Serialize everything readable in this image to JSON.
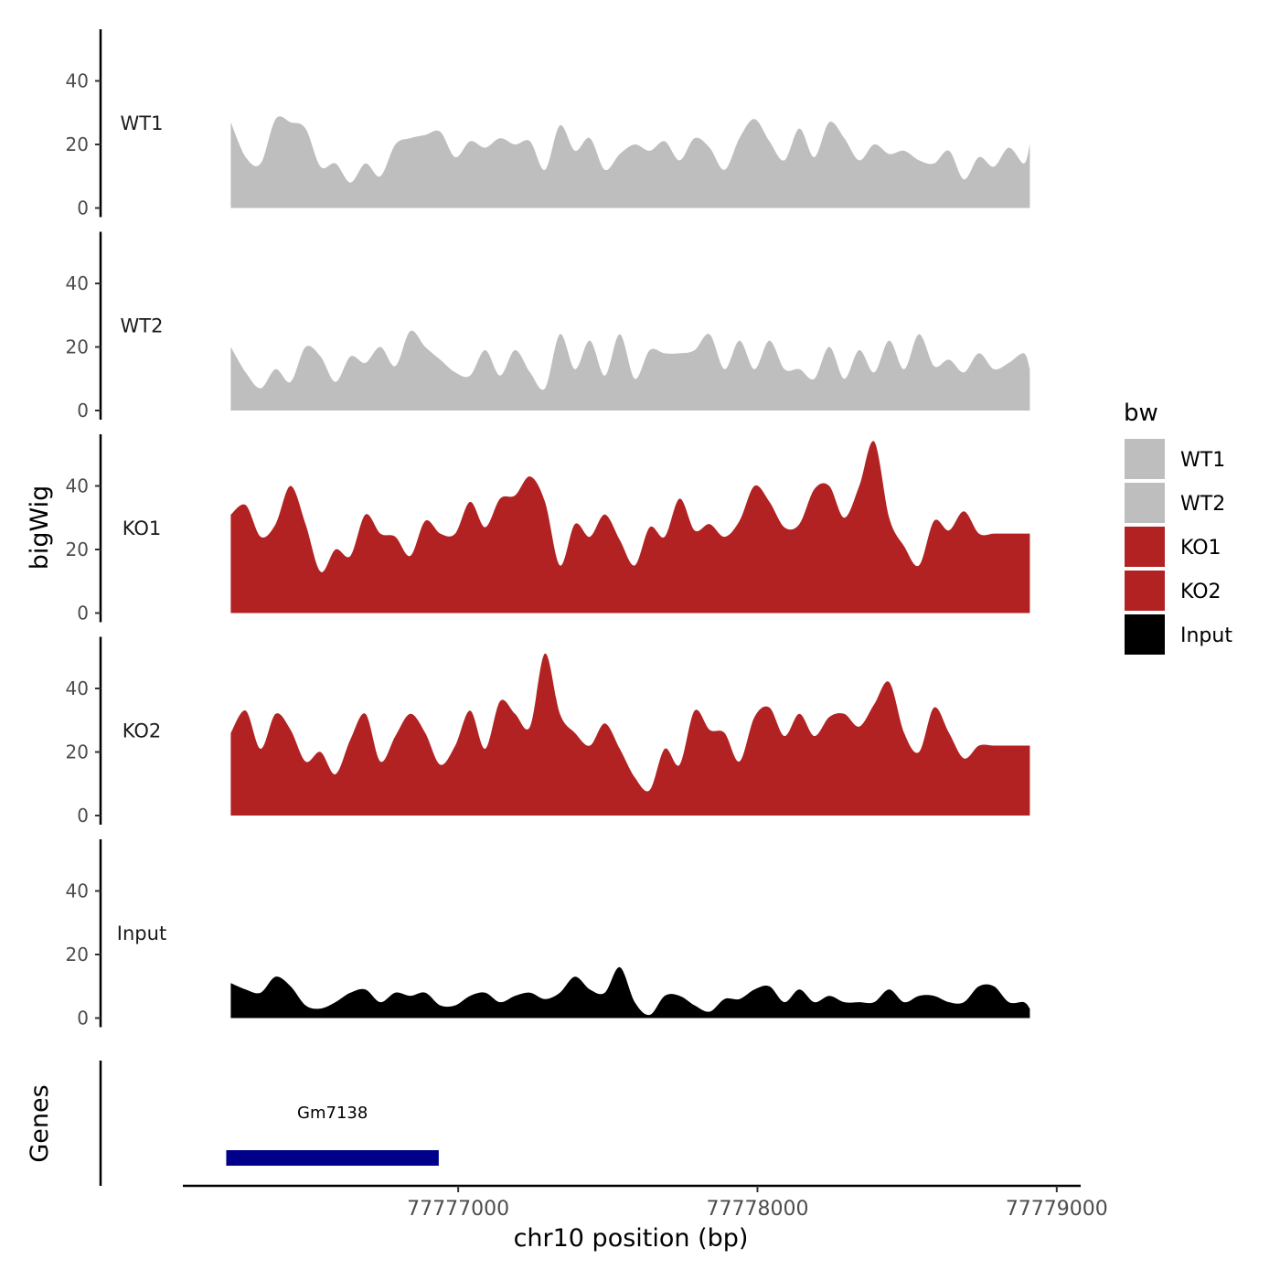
{
  "chart_data": {
    "type": "area",
    "title": "",
    "xlabel": "chr10 position (bp)",
    "ylabel": "bigWig",
    "genes_label": "Genes",
    "xlim": [
      77776080,
      77779080
    ],
    "ylim": [
      0,
      55
    ],
    "x_ticks": [
      77777000,
      77778000,
      77779000
    ],
    "x_tick_labels": [
      "77777000",
      "77778000",
      "77779000"
    ],
    "y_ticks": [
      0,
      20,
      40
    ],
    "y_tick_labels": [
      "0",
      "20",
      "40"
    ],
    "legend": {
      "title": "bw",
      "position": "right",
      "entries": [
        {
          "label": "WT1",
          "color": "#bebebe"
        },
        {
          "label": "WT2",
          "color": "#bebebe"
        },
        {
          "label": "KO1",
          "color": "#b22222"
        },
        {
          "label": "KO2",
          "color": "#b22222"
        },
        {
          "label": "Input",
          "color": "#000000"
        }
      ]
    },
    "track_x": [
      77776240,
      77776290,
      77776340,
      77776390,
      77776440,
      77776490,
      77776540,
      77776590,
      77776640,
      77776690,
      77776740,
      77776790,
      77776840,
      77776890,
      77776940,
      77776990,
      77777040,
      77777090,
      77777140,
      77777190,
      77777240,
      77777290,
      77777340,
      77777390,
      77777440,
      77777490,
      77777540,
      77777590,
      77777640,
      77777690,
      77777740,
      77777790,
      77777840,
      77777890,
      77777940,
      77777990,
      77778040,
      77778090,
      77778140,
      77778190,
      77778240,
      77778290,
      77778340,
      77778390,
      77778440,
      77778490,
      77778540,
      77778590,
      77778640,
      77778690,
      77778740,
      77778790,
      77778840,
      77778890,
      77778910
    ],
    "series": [
      {
        "name": "WT1",
        "color": "#bebebe",
        "values": [
          27,
          16,
          14,
          28,
          27,
          25,
          13,
          14,
          8,
          14,
          10,
          20,
          22,
          23,
          24,
          16,
          21,
          19,
          22,
          20,
          21,
          12,
          26,
          18,
          22,
          12,
          17,
          20,
          18,
          21,
          15,
          22,
          19,
          12,
          22,
          28,
          21,
          15,
          25,
          16,
          27,
          22,
          15,
          20,
          17,
          18,
          15,
          14,
          18,
          9,
          16,
          13,
          19,
          14,
          20
        ]
      },
      {
        "name": "WT2",
        "color": "#bebebe",
        "values": [
          20,
          12,
          7,
          13,
          9,
          20,
          17,
          9,
          17,
          15,
          20,
          14,
          25,
          20,
          16,
          12,
          11,
          19,
          11,
          19,
          12,
          7,
          24,
          13,
          22,
          11,
          24,
          10,
          19,
          18,
          18,
          19,
          24,
          13,
          22,
          13,
          22,
          13,
          13,
          10,
          20,
          10,
          19,
          12,
          22,
          13,
          24,
          14,
          16,
          12,
          18,
          13,
          15,
          18,
          13
        ]
      },
      {
        "name": "KO1",
        "color": "#b22222",
        "values": [
          31,
          34,
          24,
          28,
          40,
          28,
          13,
          20,
          18,
          31,
          25,
          24,
          18,
          29,
          25,
          25,
          35,
          27,
          36,
          37,
          43,
          35,
          15,
          28,
          24,
          31,
          23,
          15,
          27,
          24,
          36,
          26,
          28,
          24,
          29,
          40,
          35,
          27,
          28,
          39,
          40,
          30,
          40,
          54,
          30,
          21,
          15,
          29,
          26,
          32,
          25,
          25,
          25,
          25,
          25
        ]
      },
      {
        "name": "KO2",
        "color": "#b22222",
        "values": [
          26,
          33,
          21,
          32,
          27,
          17,
          20,
          13,
          24,
          32,
          17,
          25,
          32,
          26,
          16,
          22,
          33,
          21,
          36,
          32,
          28,
          51,
          32,
          26,
          22,
          29,
          21,
          12,
          8,
          21,
          16,
          33,
          27,
          26,
          17,
          31,
          34,
          25,
          32,
          25,
          31,
          32,
          28,
          35,
          42,
          26,
          20,
          34,
          26,
          18,
          22,
          22,
          22,
          22,
          22
        ]
      },
      {
        "name": "Input",
        "color": "#000000",
        "values": [
          11,
          9,
          8,
          13,
          10,
          4,
          3,
          5,
          8,
          9,
          5,
          8,
          7,
          8,
          4,
          4,
          7,
          8,
          5,
          7,
          8,
          6,
          8,
          13,
          9,
          8,
          16,
          5,
          1,
          7,
          7,
          4,
          2,
          6,
          6,
          9,
          10,
          5,
          9,
          5,
          7,
          5,
          5,
          5,
          9,
          5,
          7,
          7,
          5,
          5,
          10,
          10,
          5,
          5,
          3
        ]
      }
    ],
    "genes": [
      {
        "name": "Gm7138",
        "start": 77776225,
        "end": 77776935,
        "color": "#00008b"
      }
    ]
  }
}
